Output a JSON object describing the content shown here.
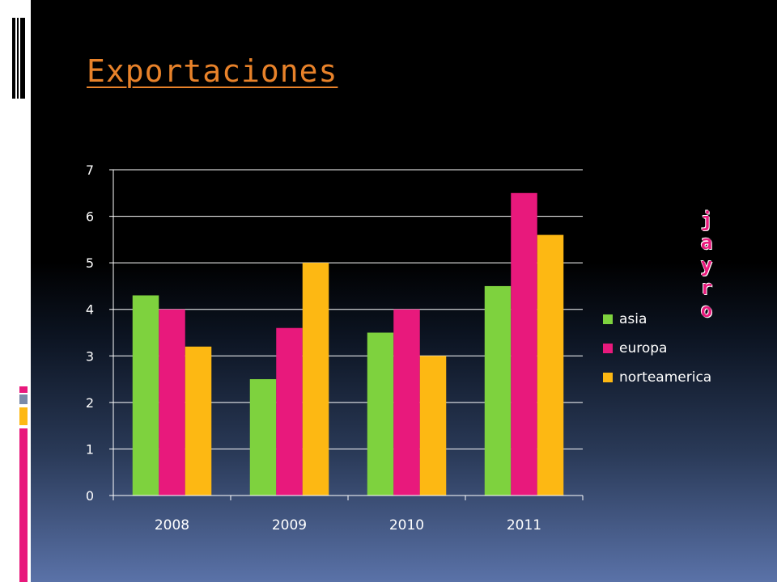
{
  "slide": {
    "title": "Exportaciones",
    "side_text": [
      "j",
      "a",
      "y",
      "r",
      "o"
    ]
  },
  "colors": {
    "asia": "#7ed23e",
    "europa": "#e8197c",
    "norteamerica": "#fdb813",
    "title": "#e8822a"
  },
  "chart_data": {
    "type": "bar",
    "title": "",
    "xlabel": "",
    "ylabel": "",
    "categories": [
      "2008",
      "2009",
      "2010",
      "2011"
    ],
    "series": [
      {
        "name": "asia",
        "values": [
          4.3,
          2.5,
          3.5,
          4.5
        ]
      },
      {
        "name": "europa",
        "values": [
          4.0,
          3.6,
          4.0,
          6.5
        ]
      },
      {
        "name": "norteamerica",
        "values": [
          3.2,
          5.0,
          3.0,
          5.6
        ]
      }
    ],
    "ylim": [
      0,
      7
    ],
    "yticks": [
      "0",
      "1",
      "2",
      "3",
      "4",
      "5",
      "6",
      "7"
    ],
    "grid": true,
    "legend_position": "right"
  }
}
